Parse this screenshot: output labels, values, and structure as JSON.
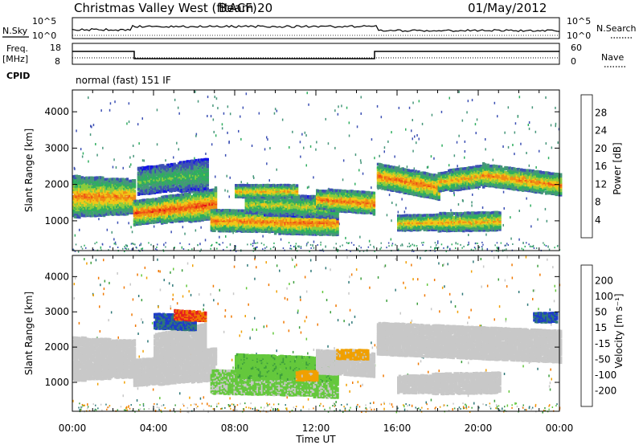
{
  "header": {
    "title": "Christmas Valley West (fitACF)",
    "beam": "Beam 20",
    "date": "01/May/2012"
  },
  "strip_labels": {
    "nsky": "N.Sky",
    "nsearch": "N.Search",
    "freq_line1": "Freq.",
    "freq_line2": "[MHz]",
    "nave": "Nave",
    "cpid": "CPID",
    "cpid_value": "normal (fast) 151 IF"
  },
  "noise_ticks_left": [
    "10^5",
    "10^0"
  ],
  "noise_ticks_right": [
    "10^5",
    "10^0"
  ],
  "freq_ticks_left": [
    "18",
    "8"
  ],
  "freq_ticks_right": [
    "60",
    "0"
  ],
  "x_ticks": [
    "00:00",
    "04:00",
    "08:00",
    "12:00",
    "16:00",
    "20:00",
    "00:00"
  ],
  "x_label": "Time UT",
  "colors": {
    "power_scale": [
      "#1414e6",
      "#3c50b4",
      "#46967a",
      "#2fae5f",
      "#8ccc3c",
      "#f0c818",
      "#f08c14",
      "#f05014",
      "#e61414"
    ],
    "velocity_scale": [
      "#1e3cc8",
      "#2e7878",
      "#3c9e3c",
      "#64c83c",
      "#c8c8c8",
      "#c8c8c8",
      "#f0a000",
      "#f07800",
      "#e61e1e"
    ]
  },
  "chart_data": [
    {
      "type": "heatmap",
      "name": "power",
      "ylabel": "Slant Range [km]",
      "yticks": [
        "4000",
        "3000",
        "2000",
        "1000"
      ],
      "ylim": [
        180,
        4600
      ],
      "xlim_hours": [
        0,
        24
      ],
      "colorbar": {
        "label": "Power [dB]",
        "ticks": [
          "28",
          "24",
          "20",
          "16",
          "12",
          "8",
          "4"
        ],
        "range": [
          0,
          32
        ]
      },
      "bands": [
        {
          "t": [
            0,
            3.0
          ],
          "r0": [
            1750,
            1600
          ],
          "r1": [
            1750,
            1600
          ],
          "w": [
            550,
            450
          ],
          "v": 24
        },
        {
          "t": [
            3.0,
            7.0
          ],
          "r0": [
            1100,
            1350
          ],
          "r1": [
            1250,
            1700
          ],
          "w": [
            300,
            420
          ],
          "v": 27
        },
        {
          "t": [
            3.2,
            6.6
          ],
          "r0": [
            2000,
            2200
          ],
          "r1": [
            2100,
            2500
          ],
          "w": [
            350,
            400
          ],
          "v": 14
        },
        {
          "t": [
            6.8,
            13.0
          ],
          "r0": [
            1000,
            1050
          ],
          "r1": [
            900,
            1000
          ],
          "w": [
            280,
            320
          ],
          "v": 25
        },
        {
          "t": [
            8.5,
            13.0
          ],
          "r0": [
            1400,
            1550
          ],
          "r1": [
            1400,
            1350
          ],
          "w": [
            250,
            300
          ],
          "v": 18
        },
        {
          "t": [
            8.0,
            11.0
          ],
          "r0": [
            1800,
            1850
          ],
          "r1": [
            1800,
            1850
          ],
          "w": [
            150,
            160
          ],
          "v": 22
        },
        {
          "t": [
            12.0,
            14.8
          ],
          "r0": [
            1700,
            1500
          ],
          "r1": [
            1700,
            1300
          ],
          "w": [
            250,
            300
          ],
          "v": 25
        },
        {
          "t": [
            15.0,
            18.0
          ],
          "r0": [
            2200,
            2300
          ],
          "r1": [
            2050,
            1800
          ],
          "w": [
            300,
            320
          ],
          "v": 25
        },
        {
          "t": [
            16.0,
            21.0
          ],
          "r0": [
            1000,
            900
          ],
          "r1": [
            950,
            1050
          ],
          "w": [
            200,
            250
          ],
          "v": 22
        },
        {
          "t": [
            18.0,
            20.2
          ],
          "r0": [
            2050,
            2100
          ],
          "r1": [
            2100,
            2400
          ],
          "w": [
            250,
            300
          ],
          "v": 22
        },
        {
          "t": [
            20.2,
            24.0
          ],
          "r0": [
            2400,
            2150
          ],
          "r1": [
            2100,
            1900
          ],
          "w": [
            300,
            280
          ],
          "v": 24
        }
      ]
    },
    {
      "type": "heatmap",
      "name": "velocity",
      "ylabel": "Slant Range [km]",
      "yticks": [
        "4000",
        "3000",
        "2000",
        "1000"
      ],
      "ylim": [
        180,
        4600
      ],
      "xlim_hours": [
        0,
        24
      ],
      "colorbar": {
        "label": "Velocity [m s⁻¹]",
        "ticks": [
          "200",
          "100",
          "50",
          "15",
          "-15",
          "-50",
          "-100",
          "-200"
        ],
        "range": [
          -250,
          250
        ]
      },
      "bands": [
        {
          "t": [
            0,
            3.0
          ],
          "r0": [
            1750,
            1600
          ],
          "r1": [
            1750,
            1600
          ],
          "w": [
            600,
            500
          ],
          "v": 0
        },
        {
          "t": [
            3.0,
            7.0
          ],
          "r0": [
            1150,
            1400
          ],
          "r1": [
            1300,
            1750
          ],
          "w": [
            350,
            450
          ],
          "v": 0
        },
        {
          "t": [
            4.0,
            6.5
          ],
          "r0": [
            2000,
            2100
          ],
          "r1": [
            2100,
            2500
          ],
          "w": [
            300,
            350
          ],
          "v": 0
        },
        {
          "t": [
            6.8,
            13.0
          ],
          "r0": [
            1000,
            1050
          ],
          "r1": [
            900,
            1000
          ],
          "w": [
            300,
            350
          ],
          "v": -20
        },
        {
          "t": [
            8.0,
            13.0
          ],
          "r0": [
            1400,
            1550
          ],
          "r1": [
            1400,
            1350
          ],
          "w": [
            300,
            320
          ],
          "v": -40
        },
        {
          "t": [
            12.0,
            14.8
          ],
          "r0": [
            1700,
            1500
          ],
          "r1": [
            1700,
            1300
          ],
          "w": [
            300,
            320
          ],
          "v": 0
        },
        {
          "t": [
            15.0,
            24.0
          ],
          "r0": [
            2200,
            2300
          ],
          "r1": [
            2050,
            2000
          ],
          "w": [
            450,
            450
          ],
          "v": 0
        },
        {
          "t": [
            16.0,
            21.0
          ],
          "r0": [
            1000,
            900
          ],
          "r1": [
            950,
            1050
          ],
          "w": [
            250,
            280
          ],
          "v": 0
        },
        {
          "t": [
            4.0,
            6.0
          ],
          "r0": [
            2750,
            2750
          ],
          "r1": [
            2700,
            2700
          ],
          "w": [
            200,
            200
          ],
          "v": -200
        },
        {
          "t": [
            5.0,
            6.5
          ],
          "r0": [
            2950,
            2900
          ],
          "r1": [
            2900,
            2850
          ],
          "w": [
            120,
            120
          ],
          "v": 200
        },
        {
          "t": [
            11.0,
            12.0
          ],
          "r0": [
            1600,
            800
          ],
          "r1": [
            1600,
            800
          ],
          "w": [
            120,
            120
          ],
          "v": 60
        },
        {
          "t": [
            13.0,
            14.5
          ],
          "r0": [
            2100,
            1500
          ],
          "r1": [
            2100,
            1500
          ],
          "w": [
            100,
            100
          ],
          "v": 60
        },
        {
          "t": [
            22.7,
            23.8
          ],
          "r0": [
            2850,
            2850
          ],
          "r1": [
            2850,
            2850
          ],
          "w": [
            100,
            100
          ],
          "v": -200
        }
      ]
    }
  ]
}
